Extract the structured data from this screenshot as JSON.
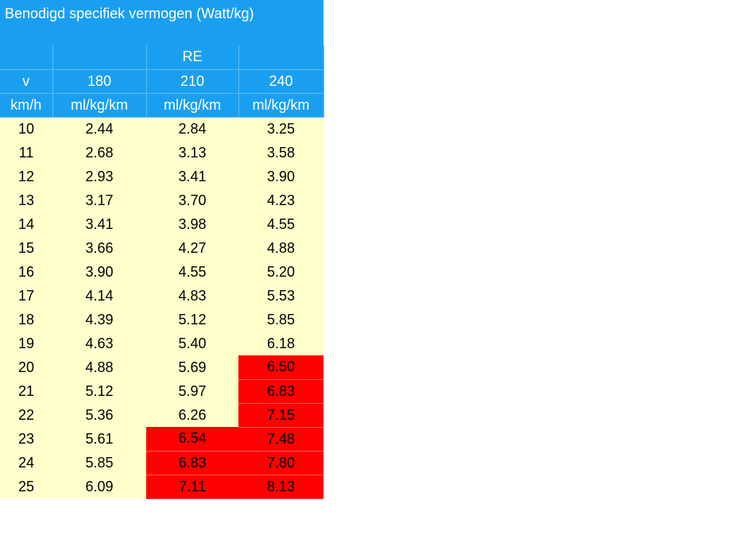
{
  "title": "Benodigd specifiek vermogen (Watt/kg)",
  "header": {
    "group_label": "RE",
    "speed_label": "v",
    "speed_unit": "km/h",
    "re_values": [
      "180",
      "210",
      "240"
    ],
    "re_unit": "ml/kg/km"
  },
  "colors": {
    "header_bg": "#1a9ff0",
    "cell_bg": "#ffffcc",
    "highlight_bg": "#ff0000"
  },
  "rows": [
    {
      "v": "10",
      "c180": "2.44",
      "c210": "2.84",
      "c240": "3.25",
      "hi210": false,
      "hi240": false
    },
    {
      "v": "11",
      "c180": "2.68",
      "c210": "3.13",
      "c240": "3.58",
      "hi210": false,
      "hi240": false
    },
    {
      "v": "12",
      "c180": "2.93",
      "c210": "3.41",
      "c240": "3.90",
      "hi210": false,
      "hi240": false
    },
    {
      "v": "13",
      "c180": "3.17",
      "c210": "3.70",
      "c240": "4.23",
      "hi210": false,
      "hi240": false
    },
    {
      "v": "14",
      "c180": "3.41",
      "c210": "3.98",
      "c240": "4.55",
      "hi210": false,
      "hi240": false
    },
    {
      "v": "15",
      "c180": "3.66",
      "c210": "4.27",
      "c240": "4.88",
      "hi210": false,
      "hi240": false
    },
    {
      "v": "16",
      "c180": "3.90",
      "c210": "4.55",
      "c240": "5.20",
      "hi210": false,
      "hi240": false
    },
    {
      "v": "17",
      "c180": "4.14",
      "c210": "4.83",
      "c240": "5.53",
      "hi210": false,
      "hi240": false
    },
    {
      "v": "18",
      "c180": "4.39",
      "c210": "5.12",
      "c240": "5.85",
      "hi210": false,
      "hi240": false
    },
    {
      "v": "19",
      "c180": "4.63",
      "c210": "5.40",
      "c240": "6.18",
      "hi210": false,
      "hi240": false
    },
    {
      "v": "20",
      "c180": "4.88",
      "c210": "5.69",
      "c240": "6.50",
      "hi210": false,
      "hi240": true
    },
    {
      "v": "21",
      "c180": "5.12",
      "c210": "5.97",
      "c240": "6.83",
      "hi210": false,
      "hi240": true
    },
    {
      "v": "22",
      "c180": "5.36",
      "c210": "6.26",
      "c240": "7.15",
      "hi210": false,
      "hi240": true
    },
    {
      "v": "23",
      "c180": "5.61",
      "c210": "6.54",
      "c240": "7.48",
      "hi210": true,
      "hi240": true
    },
    {
      "v": "24",
      "c180": "5.85",
      "c210": "6.83",
      "c240": "7.80",
      "hi210": true,
      "hi240": true
    },
    {
      "v": "25",
      "c180": "6.09",
      "c210": "7.11",
      "c240": "8.13",
      "hi210": true,
      "hi240": true
    }
  ]
}
